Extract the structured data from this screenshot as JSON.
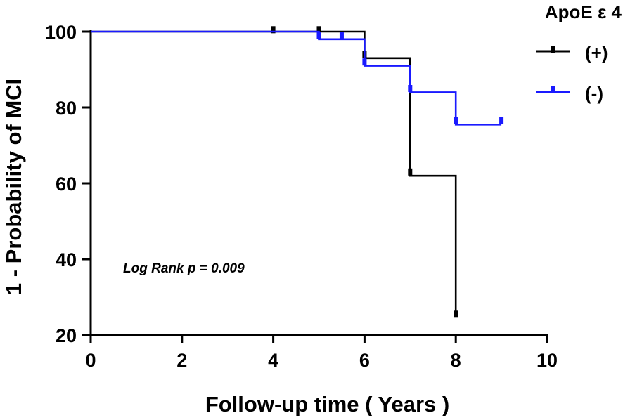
{
  "chart_data": {
    "type": "line",
    "subtype": "kaplan-meier-step",
    "title": "",
    "xlabel": "Follow-up time ( Years )",
    "ylabel": "1 - Probability of MCI",
    "xlim": [
      0,
      10
    ],
    "ylim": [
      20,
      100
    ],
    "x_ticks": [
      "0",
      "2",
      "4",
      "6",
      "8",
      "10"
    ],
    "y_ticks": [
      "20",
      "40",
      "60",
      "80",
      "100"
    ],
    "grid": false,
    "legend": {
      "title": "ApoE ε 4",
      "placement": "top-right",
      "entries": [
        "(+)",
        "(-)"
      ]
    },
    "annotation": "Log Rank p = 0.009",
    "series": [
      {
        "name": "(+)",
        "color": "#000000",
        "steps": [
          [
            0,
            100
          ],
          [
            6,
            100
          ],
          [
            6,
            93
          ],
          [
            7,
            93
          ],
          [
            7,
            62
          ],
          [
            8,
            62
          ],
          [
            8,
            25.5
          ]
        ],
        "censored": [
          [
            4,
            100.5
          ],
          [
            5,
            100.5
          ],
          [
            6,
            94
          ],
          [
            7,
            63
          ],
          [
            8,
            25.5
          ]
        ]
      },
      {
        "name": "(-)",
        "color": "#1a1aff",
        "steps": [
          [
            0,
            100
          ],
          [
            5,
            100
          ],
          [
            5,
            98
          ],
          [
            6,
            98
          ],
          [
            6,
            91
          ],
          [
            7,
            91
          ],
          [
            7,
            84
          ],
          [
            8,
            84
          ],
          [
            8,
            75.5
          ],
          [
            9,
            75.5
          ]
        ],
        "censored": [
          [
            5,
            99
          ],
          [
            5.5,
            99
          ],
          [
            6,
            92
          ],
          [
            7,
            85
          ],
          [
            8,
            76.5
          ],
          [
            9,
            76.5
          ]
        ]
      }
    ]
  }
}
